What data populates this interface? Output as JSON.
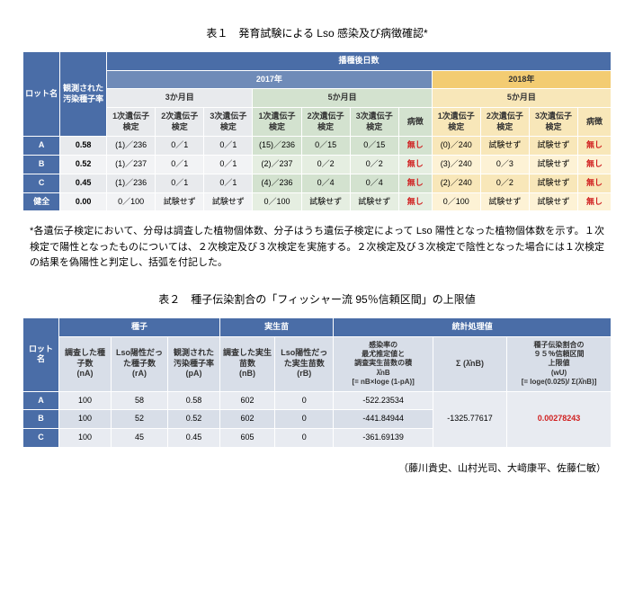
{
  "table1": {
    "title": "表１　発育試験による Lso 感染及び病徴確認*",
    "head": {
      "lot": "ロット名",
      "obs": "観測された汚染種子率",
      "days": "播種後日数",
      "y2017": "2017年",
      "y2018": "2018年",
      "m3": "3か月目",
      "m5": "5か月目",
      "c1": "1次遺伝子検定",
      "c2": "2次遺伝子検定",
      "c3": "3次遺伝子検定",
      "sym": "病徴"
    },
    "rows": [
      {
        "lot": "A",
        "obs": "0.58",
        "m3": [
          "(1)／236",
          "0／1",
          "0／1"
        ],
        "m5_17": [
          "(15)／236",
          "0／15",
          "0／15",
          "無し"
        ],
        "m5_18": [
          "(0)／240",
          "試験せず",
          "試験せず",
          "無し"
        ]
      },
      {
        "lot": "B",
        "obs": "0.52",
        "m3": [
          "(1)／237",
          "0／1",
          "0／1"
        ],
        "m5_17": [
          "(2)／237",
          "0／2",
          "0／2",
          "無し"
        ],
        "m5_18": [
          "(3)／240",
          "0／3",
          "試験せず",
          "無し"
        ]
      },
      {
        "lot": "C",
        "obs": "0.45",
        "m3": [
          "(1)／236",
          "0／1",
          "0／1"
        ],
        "m5_17": [
          "(4)／236",
          "0／4",
          "0／4",
          "無し"
        ],
        "m5_18": [
          "(2)／240",
          "0／2",
          "試験せず",
          "無し"
        ]
      },
      {
        "lot": "健全",
        "obs": "0.00",
        "m3": [
          "0／100",
          "試験せず",
          "試験せず"
        ],
        "m5_17": [
          "0／100",
          "試験せず",
          "試験せず",
          "無し"
        ],
        "m5_18": [
          "0／100",
          "試験せず",
          "試験せず",
          "無し"
        ]
      }
    ],
    "note": "*各遺伝子検定において、分母は調査した植物個体数、分子はうち遺伝子検定によって Lso 陽性となった植物個体数を示す。１次検定で陽性となったものについては、２次検定及び３次検定を実施する。２次検定及び３次検定で陰性となった場合には１次検定の結果を偽陽性と判定し、括弧を付記した。"
  },
  "table2": {
    "title": "表２　種子伝染割合の「フィッシャー流 95％信頼区間」の上限値",
    "head": {
      "lot": "ロット名",
      "seed": "種子",
      "seedling": "実生苗",
      "stat": "統計処理値",
      "nA": "調査した種子数\n(nA)",
      "rA": "Lso陽性だった種子数\n(rA)",
      "pA": "観測された汚染種子率\n(pA)",
      "nB": "調査した実生苗数\n(nB)",
      "rB": "Lso陽性だった実生苗数\n(rB)",
      "lambda": "感染率の\n最尤推定値と\n調査実生苗数の積\nλ̂nB\n[= nB×loge (1-pA)]",
      "sigma": "Σ (λ̂nB)",
      "wu": "種子伝染割合の\n９５％信頼区間\n上限値\n(wU)\n[= loge(0.025)/ Σ(λ̂nB)]"
    },
    "rows": [
      {
        "lot": "A",
        "nA": "100",
        "rA": "58",
        "pA": "0.58",
        "nB": "602",
        "rB": "0",
        "lam": "-522.23534"
      },
      {
        "lot": "B",
        "nA": "100",
        "rA": "52",
        "pA": "0.52",
        "nB": "602",
        "rB": "0",
        "lam": "-441.84944"
      },
      {
        "lot": "C",
        "nA": "100",
        "rA": "45",
        "pA": "0.45",
        "nB": "605",
        "rB": "0",
        "lam": "-361.69139"
      }
    ],
    "sigma": "-1325.77617",
    "wu": "0.00278243"
  },
  "authors": "（藤川貴史、山村光司、大﨑康平、佐藤仁敏）"
}
